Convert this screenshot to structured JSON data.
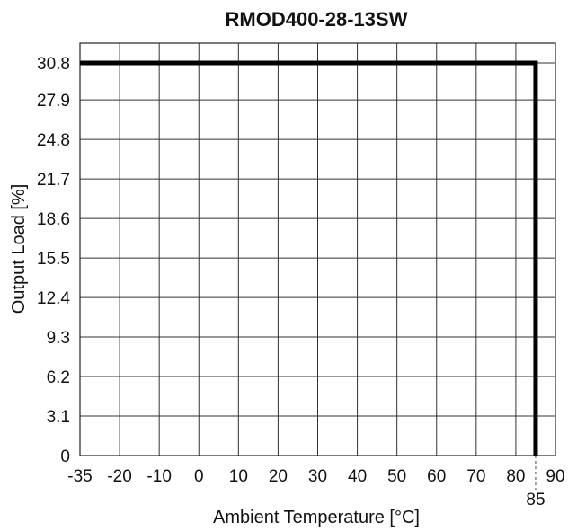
{
  "chart_data": {
    "type": "line",
    "title": "RMOD400-28-13SW",
    "xlabel": "Ambient Temperature [°C]",
    "ylabel": "Output Load [%]",
    "x_ticks": [
      -35,
      -20,
      -10,
      0,
      10,
      20,
      30,
      40,
      50,
      60,
      70,
      80,
      90
    ],
    "x_tick_labels": [
      "-35",
      "-20",
      "-10",
      "0",
      "10",
      "20",
      "30",
      "40",
      "50",
      "60",
      "70",
      "80",
      "90"
    ],
    "y_ticks": [
      0,
      3.1,
      6.2,
      9.3,
      12.4,
      15.5,
      18.6,
      21.7,
      24.8,
      27.9,
      30.8
    ],
    "y_tick_labels": [
      "0",
      "3.1",
      "6.2",
      "9.3",
      "12.4",
      "15.5",
      "18.6",
      "21.7",
      "24.8",
      "27.9",
      "30.8"
    ],
    "xlim": [
      -35,
      90
    ],
    "ylim": [
      0,
      30.8
    ],
    "grid": true,
    "annotation": {
      "x": 85,
      "label": "85"
    },
    "series": [
      {
        "color": "#000000",
        "x": [
          -35,
          85,
          85
        ],
        "y": [
          30.8,
          30.8,
          0
        ]
      }
    ]
  }
}
